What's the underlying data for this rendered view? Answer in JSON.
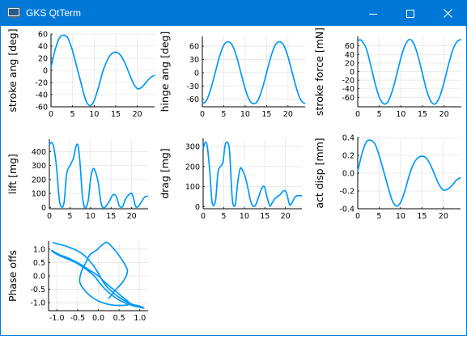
{
  "window": {
    "title": "GKS QtTerm",
    "app_icon": "terminal-app-icon",
    "controls": {
      "minimize": "minimize-icon",
      "maximize": "maximize-icon",
      "close": "close-icon"
    }
  },
  "colors": {
    "titlebar": "#0078d7",
    "series": "#009af9",
    "grid": "#e6e6e6",
    "axis": "#000000"
  },
  "chart_data": [
    {
      "type": "line",
      "ylabel": "stroke ang [deg]",
      "xlim": [
        0,
        24
      ],
      "ylim": [
        -60,
        60
      ],
      "xticks": [
        0,
        5,
        10,
        15,
        20
      ],
      "xtick_labels": [
        "0",
        "5",
        "10",
        "15",
        "20"
      ],
      "yticks": [
        -60,
        -40,
        -20,
        0,
        20,
        40,
        60
      ],
      "ytick_labels": [
        "-60",
        "-40",
        "-20",
        "0",
        "20",
        "40",
        "60"
      ],
      "grid": true,
      "x": [
        0,
        1,
        2,
        3,
        4,
        5,
        6,
        7,
        8,
        9,
        10,
        11,
        12,
        13,
        14,
        15,
        16,
        17,
        18,
        19,
        20,
        21,
        22,
        23,
        24
      ],
      "y": [
        5,
        35,
        54,
        58,
        52,
        32,
        5,
        -22,
        -48,
        -58,
        -50,
        -28,
        -2,
        16,
        27,
        30,
        26,
        14,
        -3,
        -20,
        -30,
        -28,
        -20,
        -12,
        -8
      ]
    },
    {
      "type": "line",
      "ylabel": "hinge ang [deg]",
      "xlim": [
        0,
        24
      ],
      "ylim": [
        -77,
        82
      ],
      "xticks": [
        0,
        5,
        10,
        15,
        20
      ],
      "xtick_labels": [
        "0",
        "5",
        "10",
        "15",
        "20"
      ],
      "yticks": [
        -60,
        -30,
        0,
        30,
        60
      ],
      "ytick_labels": [
        "-60",
        "-30",
        "0",
        "30",
        "60"
      ],
      "grid": true,
      "x": [
        0,
        1,
        2,
        3,
        4,
        5,
        6,
        7,
        8,
        9,
        10,
        11,
        12,
        13,
        14,
        15,
        16,
        17,
        18,
        19,
        20,
        21,
        22,
        23,
        24
      ],
      "y": [
        -70,
        -62,
        -36,
        0,
        36,
        62,
        70,
        62,
        36,
        0,
        -36,
        -62,
        -70,
        -62,
        -36,
        0,
        36,
        62,
        70,
        62,
        36,
        0,
        -36,
        -62,
        -70
      ]
    },
    {
      "type": "line",
      "ylabel": "stroke force [mN]",
      "xlim": [
        0,
        24
      ],
      "ylim": [
        -82,
        82
      ],
      "xticks": [
        0,
        5,
        10,
        15,
        20
      ],
      "xtick_labels": [
        "0",
        "5",
        "10",
        "15",
        "20"
      ],
      "yticks": [
        -60,
        -40,
        -20,
        0,
        20,
        40,
        60
      ],
      "ytick_labels": [
        "-60",
        "-40",
        "-20",
        "0",
        "20",
        "40",
        "60"
      ],
      "grid": true,
      "x": [
        0,
        0.5,
        1,
        2,
        3,
        4,
        5,
        6,
        7,
        8,
        9,
        10,
        11,
        12,
        13,
        14,
        15,
        16,
        17,
        18,
        19,
        20,
        21,
        22,
        23,
        24
      ],
      "y": [
        72,
        74,
        71,
        53,
        15,
        -27,
        -60,
        -75,
        -70,
        -45,
        -8,
        32,
        62,
        75,
        65,
        35,
        -5,
        -45,
        -70,
        -75,
        -58,
        -25,
        15,
        50,
        70,
        75
      ]
    },
    {
      "type": "line",
      "ylabel": "lift [mg]",
      "xlim": [
        0,
        24
      ],
      "ylim": [
        -10,
        490
      ],
      "xticks": [
        0,
        5,
        10,
        15,
        20
      ],
      "xtick_labels": [
        "0",
        "5",
        "10",
        "15",
        "20"
      ],
      "yticks": [
        0,
        100,
        200,
        300,
        400
      ],
      "ytick_labels": [
        "0",
        "100",
        "200",
        "300",
        "400"
      ],
      "grid": true,
      "x": [
        0,
        0.5,
        1,
        1.7,
        2.4,
        3,
        3.6,
        4.2,
        5,
        5.8,
        6.5,
        7,
        7.5,
        8,
        8.5,
        9,
        9.5,
        10,
        10.5,
        11,
        11.8,
        12.5,
        13,
        13.5,
        14.5,
        15.3,
        16,
        16.5,
        17,
        17.8,
        18.5,
        19.3,
        20,
        20.5,
        21,
        21.7,
        22.5,
        23.2,
        24
      ],
      "y": [
        450,
        465,
        440,
        300,
        60,
        2,
        40,
        240,
        300,
        350,
        440,
        440,
        300,
        90,
        5,
        5,
        60,
        200,
        270,
        270,
        190,
        40,
        0,
        0,
        40,
        85,
        90,
        60,
        10,
        5,
        60,
        90,
        100,
        60,
        5,
        10,
        45,
        75,
        80
      ]
    },
    {
      "type": "line",
      "ylabel": "drag [mg]",
      "xlim": [
        0,
        24
      ],
      "ylim": [
        -10,
        340
      ],
      "xticks": [
        0,
        5,
        10,
        15,
        20
      ],
      "xtick_labels": [
        "0",
        "5",
        "10",
        "15",
        "20"
      ],
      "yticks": [
        0,
        100,
        200,
        300
      ],
      "ytick_labels": [
        "0",
        "100",
        "200",
        "300"
      ],
      "grid": true,
      "x": [
        0,
        0.5,
        1,
        1.6,
        2.2,
        3,
        3.6,
        4.2,
        4.8,
        5.3,
        5.8,
        6.4,
        7,
        7.4,
        7.9,
        8.4,
        9,
        9.6,
        10.2,
        10.8,
        11.4,
        12,
        12.6,
        13,
        13.5,
        14.2,
        14.9,
        15.5,
        16.2,
        16.8,
        17.4,
        18,
        18.7,
        19.3,
        19.9,
        20.4,
        21,
        21.6,
        22.2,
        22.8,
        23.4,
        24
      ],
      "y": [
        290,
        320,
        300,
        180,
        20,
        30,
        170,
        200,
        220,
        300,
        320,
        280,
        60,
        5,
        20,
        120,
        190,
        180,
        150,
        100,
        40,
        5,
        5,
        20,
        50,
        90,
        100,
        50,
        5,
        20,
        40,
        50,
        60,
        75,
        80,
        60,
        10,
        20,
        45,
        55,
        55,
        55
      ]
    },
    {
      "type": "line",
      "ylabel": "act disp [mm]",
      "xlim": [
        0,
        24
      ],
      "ylim": [
        -0.4,
        0.4
      ],
      "xticks": [
        0,
        5,
        10,
        15,
        20
      ],
      "xtick_labels": [
        "0",
        "5",
        "10",
        "15",
        "20"
      ],
      "yticks": [
        -0.4,
        -0.2,
        0.0,
        0.2,
        0.4
      ],
      "ytick_labels": [
        "-0.4",
        "-0.2",
        "0.0",
        "0.2",
        "0.4"
      ],
      "grid": true,
      "x": [
        0,
        1,
        2,
        3,
        4,
        5,
        6,
        7,
        8,
        9,
        10,
        11,
        12,
        13,
        14,
        15,
        16,
        17,
        18,
        19,
        20,
        21,
        22,
        23,
        24
      ],
      "y": [
        0.02,
        0.22,
        0.35,
        0.37,
        0.33,
        0.2,
        0.03,
        -0.14,
        -0.3,
        -0.37,
        -0.33,
        -0.2,
        -0.03,
        0.1,
        0.17,
        0.19,
        0.17,
        0.09,
        -0.02,
        -0.13,
        -0.19,
        -0.18,
        -0.14,
        -0.08,
        -0.05
      ]
    },
    {
      "type": "line",
      "ylabel": "Phase offs",
      "xlim": [
        -1.2,
        1.2
      ],
      "ylim": [
        -1.3,
        1.3
      ],
      "xticks": [
        -1.0,
        -0.5,
        0.0,
        0.5,
        1.0
      ],
      "xtick_labels": [
        "-1.0",
        "-0.5",
        "0.0",
        "0.5",
        "1.0"
      ],
      "yticks": [
        -1.0,
        -0.5,
        0.0,
        0.5,
        1.0
      ],
      "ytick_labels": [
        "-1.0",
        "-0.5",
        "0.0",
        "0.5",
        "1.0"
      ],
      "grid": true,
      "x": [
        -1.1,
        -1.0,
        -0.8,
        -0.55,
        -0.35,
        -0.15,
        0.0,
        0.15,
        0.35,
        0.55,
        0.8,
        1.0,
        1.1,
        1.0,
        0.8,
        0.5,
        0.25,
        0.05,
        -0.1,
        -0.3,
        -0.55,
        -0.85,
        -1.05,
        -1.12,
        -0.95,
        -0.7,
        -0.45,
        -0.2,
        0.0,
        0.2,
        0.4,
        0.55,
        0.75,
        0.4,
        0.1,
        -0.15,
        -0.35,
        -0.45,
        -0.4,
        -0.3,
        -0.2,
        -0.05,
        0.05,
        0.2,
        0.35,
        0.55,
        0.7,
        0.6,
        0.4,
        0.25
      ],
      "y": [
        1.25,
        1.2,
        1.12,
        0.97,
        0.78,
        0.45,
        0.1,
        -0.3,
        -0.62,
        -0.85,
        -1.05,
        -1.13,
        -1.2,
        -1.17,
        -1.1,
        -0.9,
        -0.62,
        -0.3,
        0.0,
        0.25,
        0.5,
        0.7,
        0.85,
        0.95,
        0.8,
        0.65,
        0.45,
        0.2,
        0.0,
        -0.3,
        -0.55,
        -0.75,
        -1.05,
        -1.1,
        -1.0,
        -0.8,
        -0.5,
        -0.2,
        0.2,
        0.5,
        0.8,
        0.95,
        1.1,
        1.25,
        1.05,
        0.65,
        0.2,
        -0.2,
        -0.55,
        -0.85
      ]
    }
  ]
}
